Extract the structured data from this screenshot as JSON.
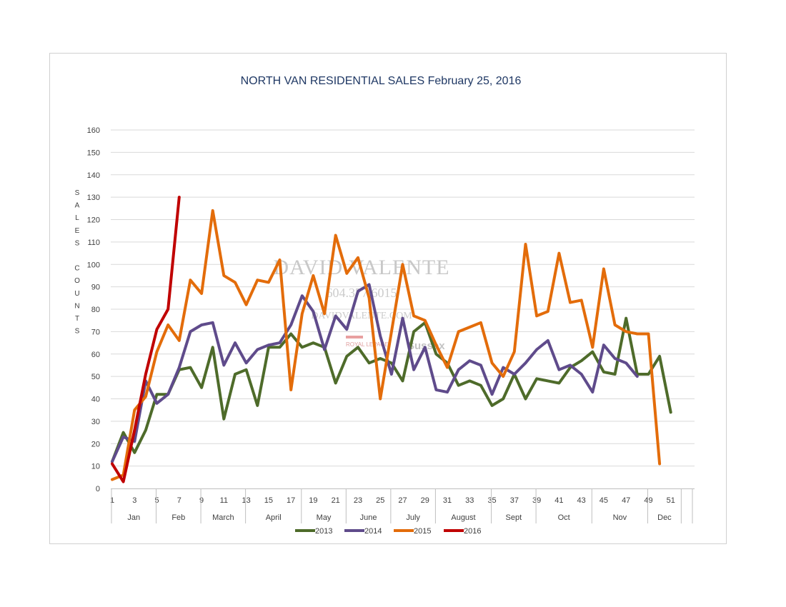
{
  "chart_data": {
    "type": "line",
    "title": "NORTH VAN RESIDENTIAL SALES February 25, 2016",
    "ylabel": "SALES COUNTS",
    "ylabel_lines": [
      "SALES",
      "COUNTS"
    ],
    "ylim": [
      0,
      160
    ],
    "yticks": [
      0,
      10,
      20,
      30,
      40,
      50,
      60,
      70,
      80,
      90,
      100,
      110,
      120,
      130,
      140,
      150,
      160
    ],
    "xlim": [
      1,
      53
    ],
    "xticks": [
      1,
      3,
      5,
      7,
      9,
      11,
      13,
      15,
      17,
      19,
      21,
      23,
      25,
      27,
      29,
      31,
      33,
      35,
      37,
      39,
      41,
      43,
      45,
      47,
      49,
      51
    ],
    "months": [
      {
        "label": "Jan",
        "start": 1,
        "end": 4
      },
      {
        "label": "Feb",
        "start": 5,
        "end": 8
      },
      {
        "label": "March",
        "start": 9,
        "end": 12
      },
      {
        "label": "April",
        "start": 13,
        "end": 17
      },
      {
        "label": "May",
        "start": 18,
        "end": 21
      },
      {
        "label": "June",
        "start": 22,
        "end": 25
      },
      {
        "label": "July",
        "start": 26,
        "end": 29
      },
      {
        "label": "August",
        "start": 30,
        "end": 34
      },
      {
        "label": "Sept",
        "start": 35,
        "end": 38
      },
      {
        "label": "Oct",
        "start": 39,
        "end": 43
      },
      {
        "label": "Nov",
        "start": 44,
        "end": 48
      },
      {
        "label": "Dec",
        "start": 49,
        "end": 51
      }
    ],
    "grid": true,
    "legend_position": "bottom",
    "series": [
      {
        "name": "2013",
        "color": "#4e6b2a",
        "values": [
          12,
          25,
          16,
          26,
          42,
          42,
          53,
          54,
          45,
          63,
          31,
          51,
          53,
          37,
          63,
          63,
          69,
          63,
          65,
          63,
          47,
          59,
          63,
          56,
          58,
          56,
          48,
          70,
          74,
          60,
          56,
          46,
          48,
          46,
          37,
          40,
          51,
          40,
          49,
          48,
          47,
          54,
          57,
          61,
          52,
          51,
          76,
          51,
          51,
          59,
          34
        ]
      },
      {
        "name": "2014",
        "color": "#5f4b8b",
        "values": [
          12,
          23,
          21,
          48,
          38,
          42,
          54,
          70,
          73,
          74,
          55,
          65,
          56,
          62,
          64,
          65,
          73,
          86,
          79,
          62,
          77,
          71,
          88,
          91,
          68,
          51,
          76,
          53,
          63,
          44,
          43,
          53,
          57,
          55,
          42,
          54,
          51,
          56,
          62,
          66,
          53,
          55,
          51,
          43,
          64,
          58,
          56,
          50
        ]
      },
      {
        "name": "2015",
        "color": "#e36c0a",
        "values": [
          4,
          6,
          35,
          41,
          61,
          73,
          66,
          93,
          87,
          124,
          95,
          92,
          82,
          93,
          92,
          102,
          44,
          78,
          95,
          78,
          113,
          96,
          103,
          85,
          40,
          70,
          100,
          77,
          75,
          64,
          54,
          70,
          72,
          74,
          56,
          50,
          61,
          109,
          77,
          79,
          105,
          83,
          84,
          63,
          98,
          73,
          70,
          69,
          69,
          11
        ]
      },
      {
        "name": "2016",
        "color": "#c00000",
        "values": [
          11,
          3,
          26,
          51,
          71,
          80,
          130
        ]
      }
    ],
    "watermark": {
      "name": "DAVID VALENTE",
      "phone": "604.377.6015",
      "website": "DAVIDVALENTE.COM",
      "brokerage": "ROYAL LEPAGE",
      "brokerage_suffix": "Sussex"
    }
  }
}
